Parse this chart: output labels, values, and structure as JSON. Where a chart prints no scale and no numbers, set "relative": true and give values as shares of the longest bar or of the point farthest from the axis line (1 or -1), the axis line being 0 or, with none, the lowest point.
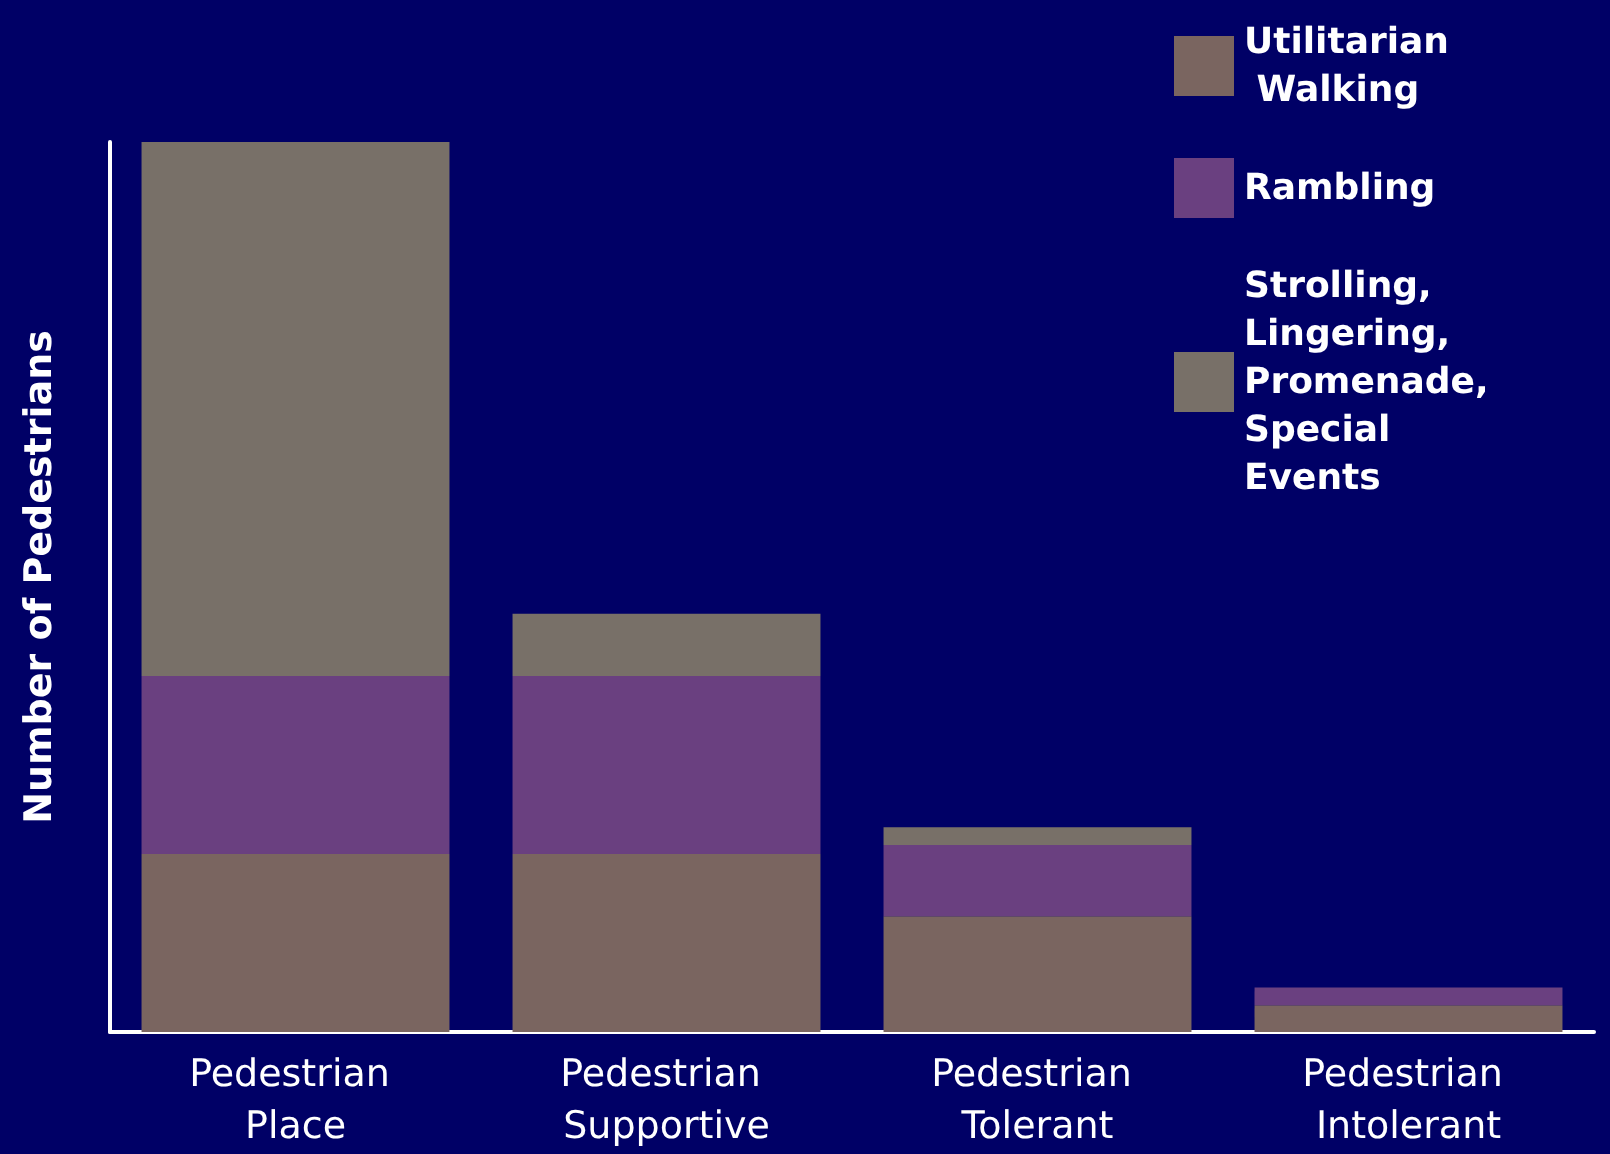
{
  "chart_data": {
    "type": "bar",
    "ylabel": "Number of Pedestrians",
    "relative": true,
    "stacked": true,
    "legend": "top right",
    "grid": false,
    "categories": [
      "Pedestrian Place",
      "Pedestrian Supportive",
      "Pedestrian Tolerant",
      "Pedestrian Intolerant"
    ],
    "series": [
      {
        "name": "Utilitarian Walking",
        "color": "#7a6560",
        "values": [
          0.2,
          0.2,
          0.13,
          0.03
        ]
      },
      {
        "name": "Rambling",
        "color": "#6a4080",
        "values": [
          0.2,
          0.2,
          0.08,
          0.02
        ]
      },
      {
        "name": "Strolling, Lingering, Promenade, Special Events",
        "color": "#787068",
        "values": [
          0.6,
          0.07,
          0.02,
          null
        ]
      }
    ]
  }
}
